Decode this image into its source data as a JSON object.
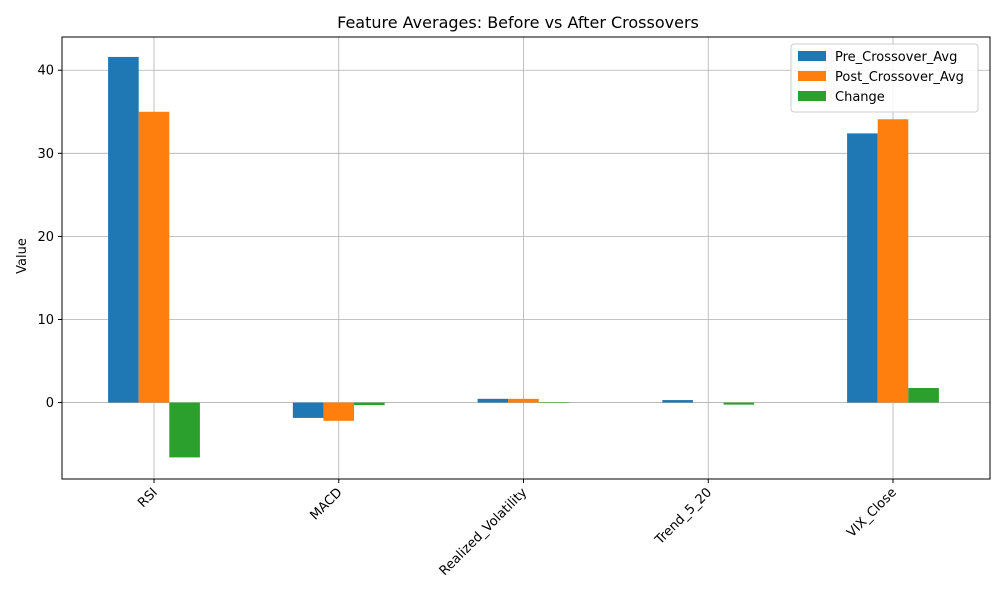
{
  "chart_data": {
    "type": "bar",
    "title": "Feature Averages: Before vs After Crossovers",
    "xlabel": "",
    "ylabel": "Value",
    "categories": [
      "RSI",
      "MACD",
      "Realized_Volatility",
      "Trend_5_20",
      "VIX_Close"
    ],
    "series": [
      {
        "name": "Pre_Crossover_Avg",
        "color": "#1f77b4",
        "values": [
          41.6,
          -1.85,
          0.45,
          0.3,
          32.4
        ]
      },
      {
        "name": "Post_Crossover_Avg",
        "color": "#ff7f0e",
        "values": [
          35.0,
          -2.2,
          0.45,
          0.0,
          34.1
        ]
      },
      {
        "name": "Change",
        "color": "#2ca02c",
        "values": [
          -6.6,
          -0.3,
          0.05,
          -0.25,
          1.75
        ]
      }
    ],
    "ylim": [
      -9.2,
      44
    ],
    "yticks": [
      0,
      10,
      20,
      30,
      40
    ],
    "grid": true,
    "legend_position": "top-right"
  }
}
